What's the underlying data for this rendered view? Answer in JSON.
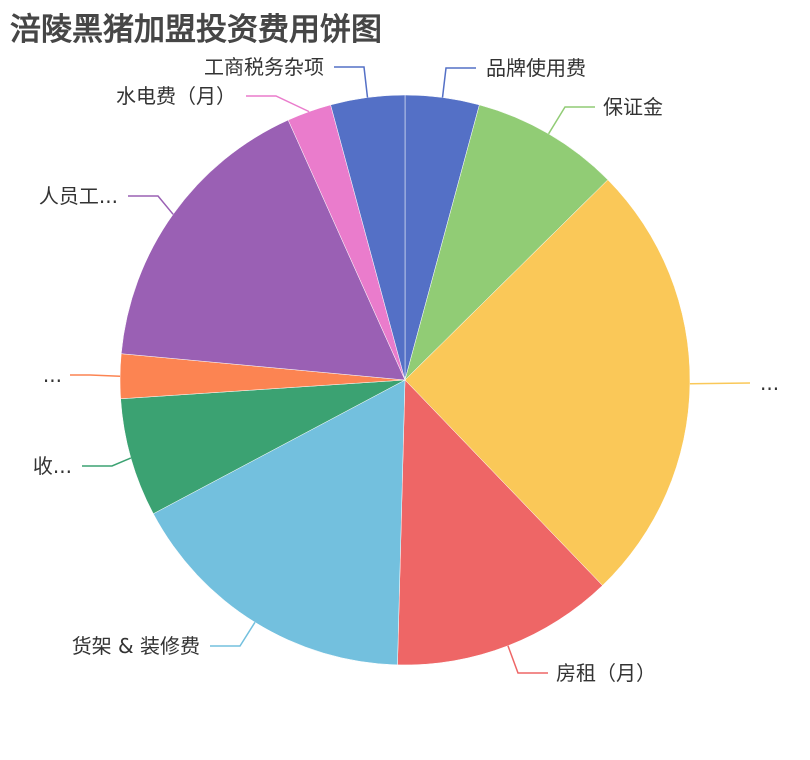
{
  "chart_data": {
    "type": "pie",
    "title": "涪陵黑猪加盟投资费用饼图",
    "start_angle": "top, clockwise",
    "slices": [
      {
        "label": "品牌使用费",
        "value": 5000,
        "color": "#5470c6"
      },
      {
        "label": "保证金",
        "value": 10000,
        "color": "#91cc75"
      },
      {
        "label": "...",
        "value": 30000,
        "color": "#fac858"
      },
      {
        "label": "房租（月）",
        "value": 15000,
        "color": "#ee6666"
      },
      {
        "label": "货架 & 装修费",
        "value": 20000,
        "color": "#73c0de"
      },
      {
        "label": "收...",
        "value": 8000,
        "color": "#3ba272"
      },
      {
        "label": "...",
        "value": 3000,
        "color": "#fc8452"
      },
      {
        "label": "人员工...",
        "value": 20000,
        "color": "#9a60b4"
      },
      {
        "label": "水电费（月）",
        "value": 3000,
        "color": "#ea7ccc"
      },
      {
        "label": "工商税务杂项",
        "value": 5000,
        "color": "#5470c6"
      }
    ]
  }
}
